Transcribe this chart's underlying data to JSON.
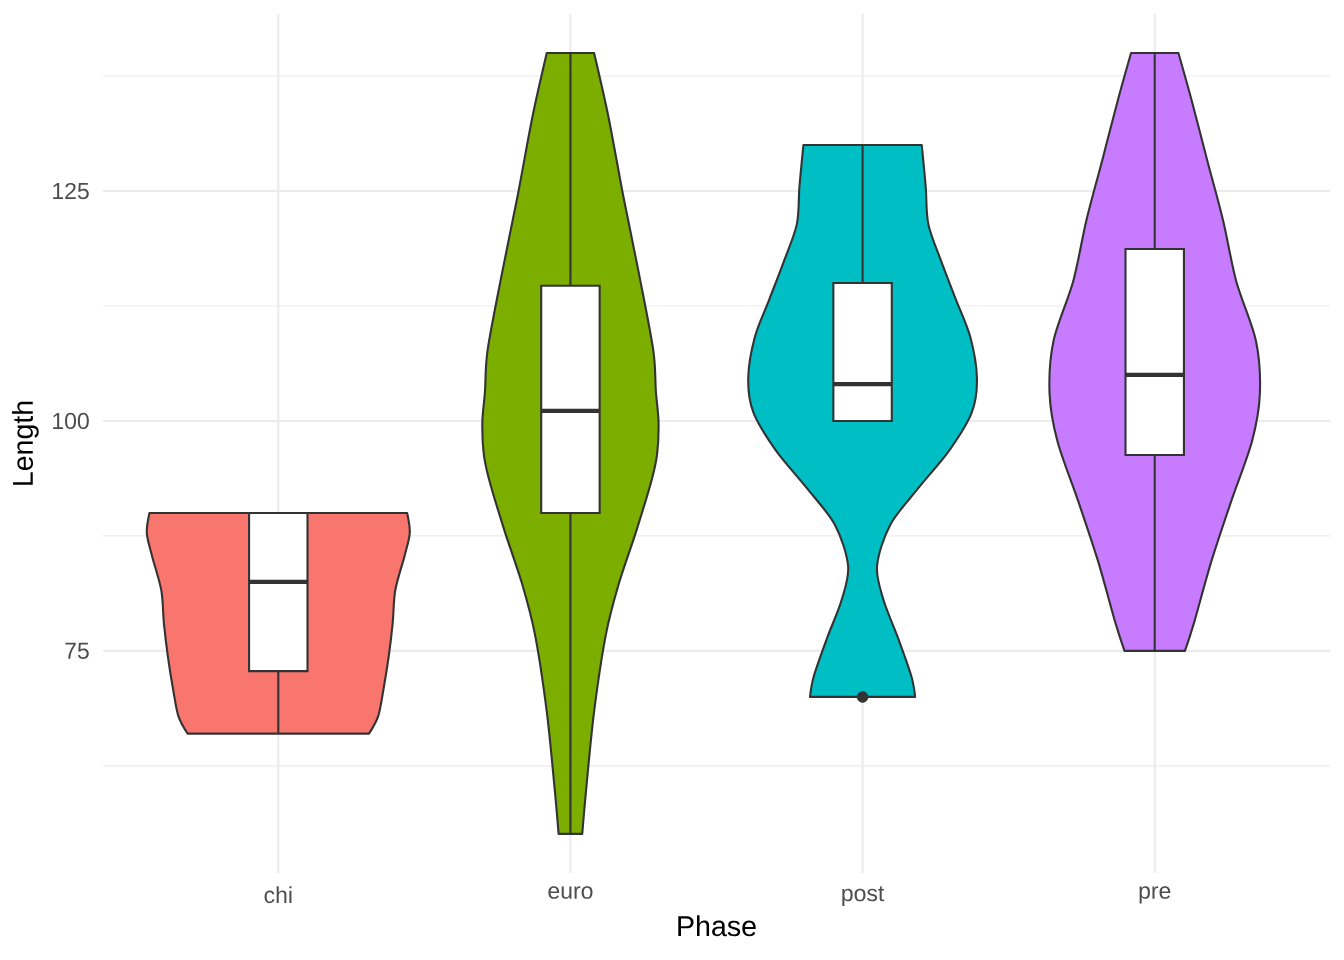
{
  "chart_data": {
    "type": "box",
    "categories": [
      "chi",
      "euro",
      "post",
      "pre"
    ],
    "xlabel": "Phase",
    "ylabel": "Length",
    "ylim": [
      50.85,
      144.25
    ],
    "yticks": [
      {
        "value": 62.5,
        "label": null
      },
      75,
      {
        "value": 87.5,
        "label": null
      },
      100,
      {
        "value": 112.5,
        "label": null
      },
      125,
      {
        "value": 137.5,
        "label": null
      }
    ],
    "grid": true,
    "color": "#ffffff",
    "boxes": [
      {
        "low": 66.0,
        "q1": 72.8,
        "median": 82.5,
        "q3": 90.0,
        "high": 90.0
      },
      {
        "low": 55.1,
        "q1": 90.0,
        "median": 101.1,
        "q3": 114.7,
        "high": 140.0
      },
      {
        "low": 100.0,
        "q1": 100.0,
        "median": 104.0,
        "q3": 115.0,
        "high": 130.0,
        "outliers": [
          70.0
        ]
      },
      {
        "low": 75.0,
        "q1": 96.3,
        "median": 105.0,
        "q3": 118.7,
        "high": 140.0
      }
    ]
  }
}
